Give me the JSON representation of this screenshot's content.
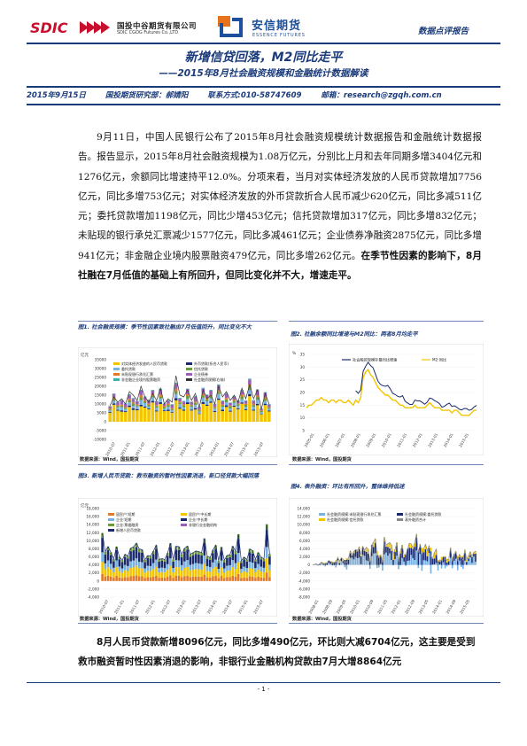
{
  "header": {
    "sdic_logo_text": "SDIC",
    "sdic_name_cn": "国投中谷期货有限公司",
    "sdic_name_en": "SDIC CGOG Futures Co.,LTD",
    "essence_name_cn": "安信期货",
    "essence_name_en": "ESSENCE FUTURES",
    "report_type": "数据点评报告"
  },
  "title": {
    "main": "新增信贷回落，M2同比走平",
    "sub": "——2015年8月社会融资规模和金融统计数据解读"
  },
  "info": {
    "date": "2015年9月15日",
    "dept": "国投期货研究部：郝婧阳",
    "phone": "联系方式:010-58747609",
    "email": "邮箱：research@zgqh.com.cn"
  },
  "body": {
    "para1_plain": "9月11日，中国人民银行公布了2015年8月社会融资规模统计数据报告和金融统计数据报告。报告显示，2015年8月社会融资规模为1.08万亿元，分别比上月和去年同期多增3404亿元和1276亿元，余额同比增速持平12.0%。分项来看，当月对实体经济发放的人民币贷款增加7756亿元，同比多增753亿元；对实体经济发放的外币贷款折合人民币减少620亿元，同比多减511亿元；委托贷款增加1198亿元，同比少增453亿元；信托贷款增加317亿元，同比多增832亿元；未贴现的银行承兑汇票减少1577亿元，同比多减461亿元；企业债券净融资2875亿元，同比多增941亿元；非金融企业境内股票融资479亿元，同比多增262亿元。",
    "para1_bold": "在季节性因素的影响下，8月社融在7月低值的基础上有所回升，但同比变化并不大，增速走平。",
    "para2": "8月人民币贷款新增8096亿元，同比多增490亿元，环比则大减6704亿元，这主要是受到救市融资暂时性因素消退的影响，非银行业金融机构贷款由7月大增8864亿元"
  },
  "figures": {
    "fig1": {
      "caption": "图1. 社会融资规模：季节性因素致社融由7月低值回升，同比变化不大",
      "source": "数据来源：Wind，国投期货"
    },
    "fig2": {
      "caption": "图2. 社融余额同比增速与M2同比：两者8月均走平",
      "source": "数据来源：Wind，国投期货"
    },
    "fig3": {
      "caption": "图3. 新增人民币贷款：救市融资的暂时性因素消退，新口径贷款大幅回落",
      "source": "数据来源：Wind，国投期货"
    },
    "fig4": {
      "caption": "图4. 表外融资：环比有所回升，整体维持低迷",
      "source": "数据来源：Wind，国投期货"
    }
  },
  "footer": {
    "page": "- 1 -"
  },
  "colors": {
    "brand_blue": "#1a3a7a",
    "sdic_red": "#c8102e"
  },
  "chart_data": [
    {
      "type": "bar",
      "title": "社会融资规模：季节性因素致社融由7月低值回升，同比变化不大",
      "ylabel": "亿元",
      "ylim": [
        -10000,
        35000
      ],
      "yticks": [
        "35000",
        "30000",
        "25000",
        "20000",
        "15000",
        "10000",
        "5000",
        "0",
        "-5000",
        "-10000"
      ],
      "xticks": [
        "2010-07",
        "2011-01",
        "2011-07",
        "2012-01",
        "2012-07",
        "2013-01",
        "2013-07",
        "2014-01",
        "2014-07",
        "2015-01",
        "2015-07"
      ],
      "legend": [
        "对实体经济发放的人民币贷款",
        "外币贷款(折合人民币)",
        "委托贷款",
        "信托贷款",
        "未贴现银行承兑汇票",
        "企业债券",
        "非金融企业境内股票融资",
        "社会融资规模(右轴)"
      ],
      "series_line": [
        9000,
        14000,
        11000,
        13000,
        10000,
        17000,
        15000,
        12000,
        20000,
        14000,
        11000,
        16000,
        12000,
        19000,
        10000,
        13000,
        11000,
        26000,
        15000,
        14000,
        18000,
        12000,
        16000,
        8000,
        18000,
        13000,
        15000,
        10000,
        20000,
        14000,
        17000,
        12000,
        15000,
        11000,
        19000,
        13000,
        21000,
        13000,
        18000,
        7000,
        16000,
        10000
      ]
    },
    {
      "type": "line",
      "title": "社融余额同比增速与M2同比：两者8月均走平",
      "ylabel": "%",
      "ylim": [
        5,
        35
      ],
      "yticks": [
        "35",
        "30",
        "25",
        "20",
        "15",
        "10",
        "5"
      ],
      "xticks": [
        "2005-01",
        "2006-01",
        "2007-01",
        "2008-01",
        "2009-01",
        "2010-01",
        "2011-01",
        "2012-01",
        "2013-01",
        "2014-01",
        "2015-01"
      ],
      "series": [
        {
          "name": "社会融资规模存量同比增速",
          "values": [
            null,
            null,
            null,
            null,
            null,
            null,
            null,
            null,
            null,
            null,
            null,
            null,
            null,
            null,
            null,
            null,
            null,
            null,
            null,
            null,
            null,
            null,
            null,
            null,
            null,
            null,
            null,
            null,
            null,
            null,
            null,
            null,
            null,
            null,
            null,
            null,
            null,
            null,
            null,
            null,
            null,
            null,
            null,
            null,
            null,
            null,
            null,
            null,
            null,
            null,
            null,
            null,
            null,
            null,
            null,
            null,
            null,
            null,
            null,
            null,
            null,
            null,
            null,
            null,
            null,
            null,
            null,
            null,
            null,
            null
          ]
        },
        {
          "name": "M2:同比",
          "values": [
            14,
            15,
            15,
            16,
            17,
            17,
            18,
            17,
            17,
            16,
            17,
            17,
            16,
            17,
            17,
            16,
            16,
            17,
            16,
            15,
            17,
            16,
            18,
            26,
            28,
            29,
            27,
            26,
            24,
            22,
            21,
            20,
            19,
            19,
            18,
            17,
            17,
            16,
            15,
            15,
            14,
            14,
            14,
            14,
            15,
            14,
            14,
            14,
            14,
            15,
            16,
            15,
            14,
            14,
            14,
            13,
            13,
            13,
            13,
            12,
            13,
            13,
            12,
            11,
            11,
            11,
            11,
            12,
            13,
            13
          ]
        }
      ]
    },
    {
      "type": "bar",
      "title": "新增人民币贷款：救市融资的暂时性因素消退，新口径贷款大幅回落",
      "ylabel": "亿元",
      "ylim": [
        -4000,
        18000
      ],
      "yticks": [
        "18,000",
        "16,000",
        "14,000",
        "12,000",
        "10,000",
        "8,000",
        "6,000",
        "4,000",
        "2,000",
        "0",
        "-2,000",
        "-4,000"
      ],
      "xticks": [
        "2010-07",
        "2011-01",
        "2011-07",
        "2012-01",
        "2012-07",
        "2013-01",
        "2013-07",
        "2014-01",
        "2014-07",
        "2015-01",
        "2015-07"
      ],
      "legend": [
        "居民户:短期",
        "居民户:中长期",
        "企业:短期",
        "企业:中长期",
        "企业:票据融资",
        "非银行业金融机构",
        "新增人民币贷款"
      ]
    },
    {
      "type": "bar",
      "title": "表外融资：环比有所回升，整体维持低迷",
      "ylim": [
        -8000,
        14000
      ],
      "yticks": [
        "14,000",
        "12,000",
        "10,000",
        "8,000",
        "6,000",
        "4,000",
        "2,000",
        "0",
        "-2,000",
        "-4,000",
        "-6,000",
        "-8,000"
      ],
      "xticks": [
        "2008-01",
        "2008-09",
        "2009-05",
        "2010-01",
        "2010-09",
        "2011-05",
        "2012-01",
        "2012-09",
        "2013-05",
        "2014-01",
        "2014-09",
        "2015-05"
      ],
      "legend": [
        "社会融资规模:未贴现银行承兑汇票",
        "社会融资规模:委托贷款",
        "社会融资规模:信托贷款",
        "表外融资合计"
      ]
    }
  ]
}
